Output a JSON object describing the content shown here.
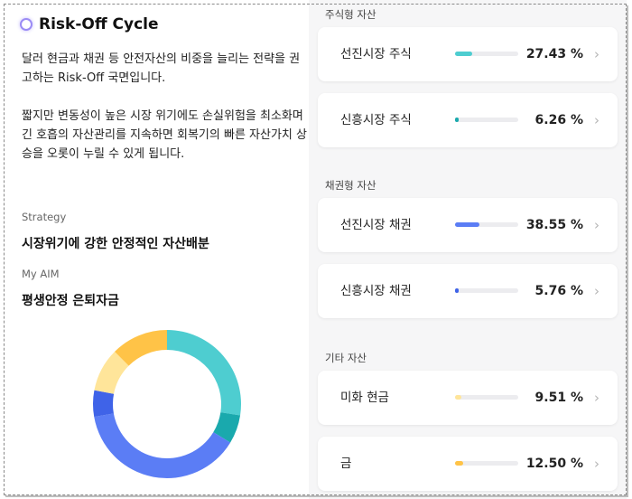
{
  "header": {
    "title": "Risk-Off Cycle"
  },
  "description": {
    "paragraph1": "달러 현금과 채권 등 안전자산의 비중을 늘리는 전략을 권고하는 Risk-Off 국면입니다.",
    "paragraph2": "짧지만 변동성이 높은 시장 위기에도 손실위험을 최소화며 긴 호흡의 자산관리를 지속하면 회복기의 빠른 자산가치 상승을 오롯이 누릴 수 있게 됩니다."
  },
  "strategy": {
    "label": "Strategy",
    "value": "시장위기에 강한 안정적인 자산배분"
  },
  "aim": {
    "label": "My AIM",
    "value": "평생안정 은퇴자금"
  },
  "sections": [
    {
      "label": "주식형 자산",
      "items": [
        {
          "name": "선진시장 주식",
          "percent": "27.43 %",
          "value": 27.43,
          "color": "#4ecdd0"
        },
        {
          "name": "신흥시장 주식",
          "percent": "6.26 %",
          "value": 6.26,
          "color": "#1aa9ad"
        }
      ]
    },
    {
      "label": "채권형 자산",
      "items": [
        {
          "name": "선진시장 채권",
          "percent": "38.55 %",
          "value": 38.55,
          "color": "#5b7df5"
        },
        {
          "name": "신흥시장 채권",
          "percent": "5.76 %",
          "value": 5.76,
          "color": "#3f63e8"
        }
      ]
    },
    {
      "label": "기타 자산",
      "items": [
        {
          "name": "미화 현금",
          "percent": "9.51 %",
          "value": 9.51,
          "color": "#ffe59a"
        },
        {
          "name": "금",
          "percent": "12.50 %",
          "value": 12.5,
          "color": "#ffc347"
        }
      ]
    }
  ],
  "chevron_icon": "chevron-right-icon",
  "chart_data": {
    "type": "pie",
    "variant": "donut",
    "categories": [
      "선진시장 주식",
      "신흥시장 주식",
      "선진시장 채권",
      "신흥시장 채권",
      "미화 현금",
      "금"
    ],
    "values": [
      27.43,
      6.26,
      38.55,
      5.76,
      9.51,
      12.5
    ],
    "colors": [
      "#4ecdd0",
      "#1aa9ad",
      "#5b7df5",
      "#3f63e8",
      "#ffe59a",
      "#ffc347"
    ]
  }
}
